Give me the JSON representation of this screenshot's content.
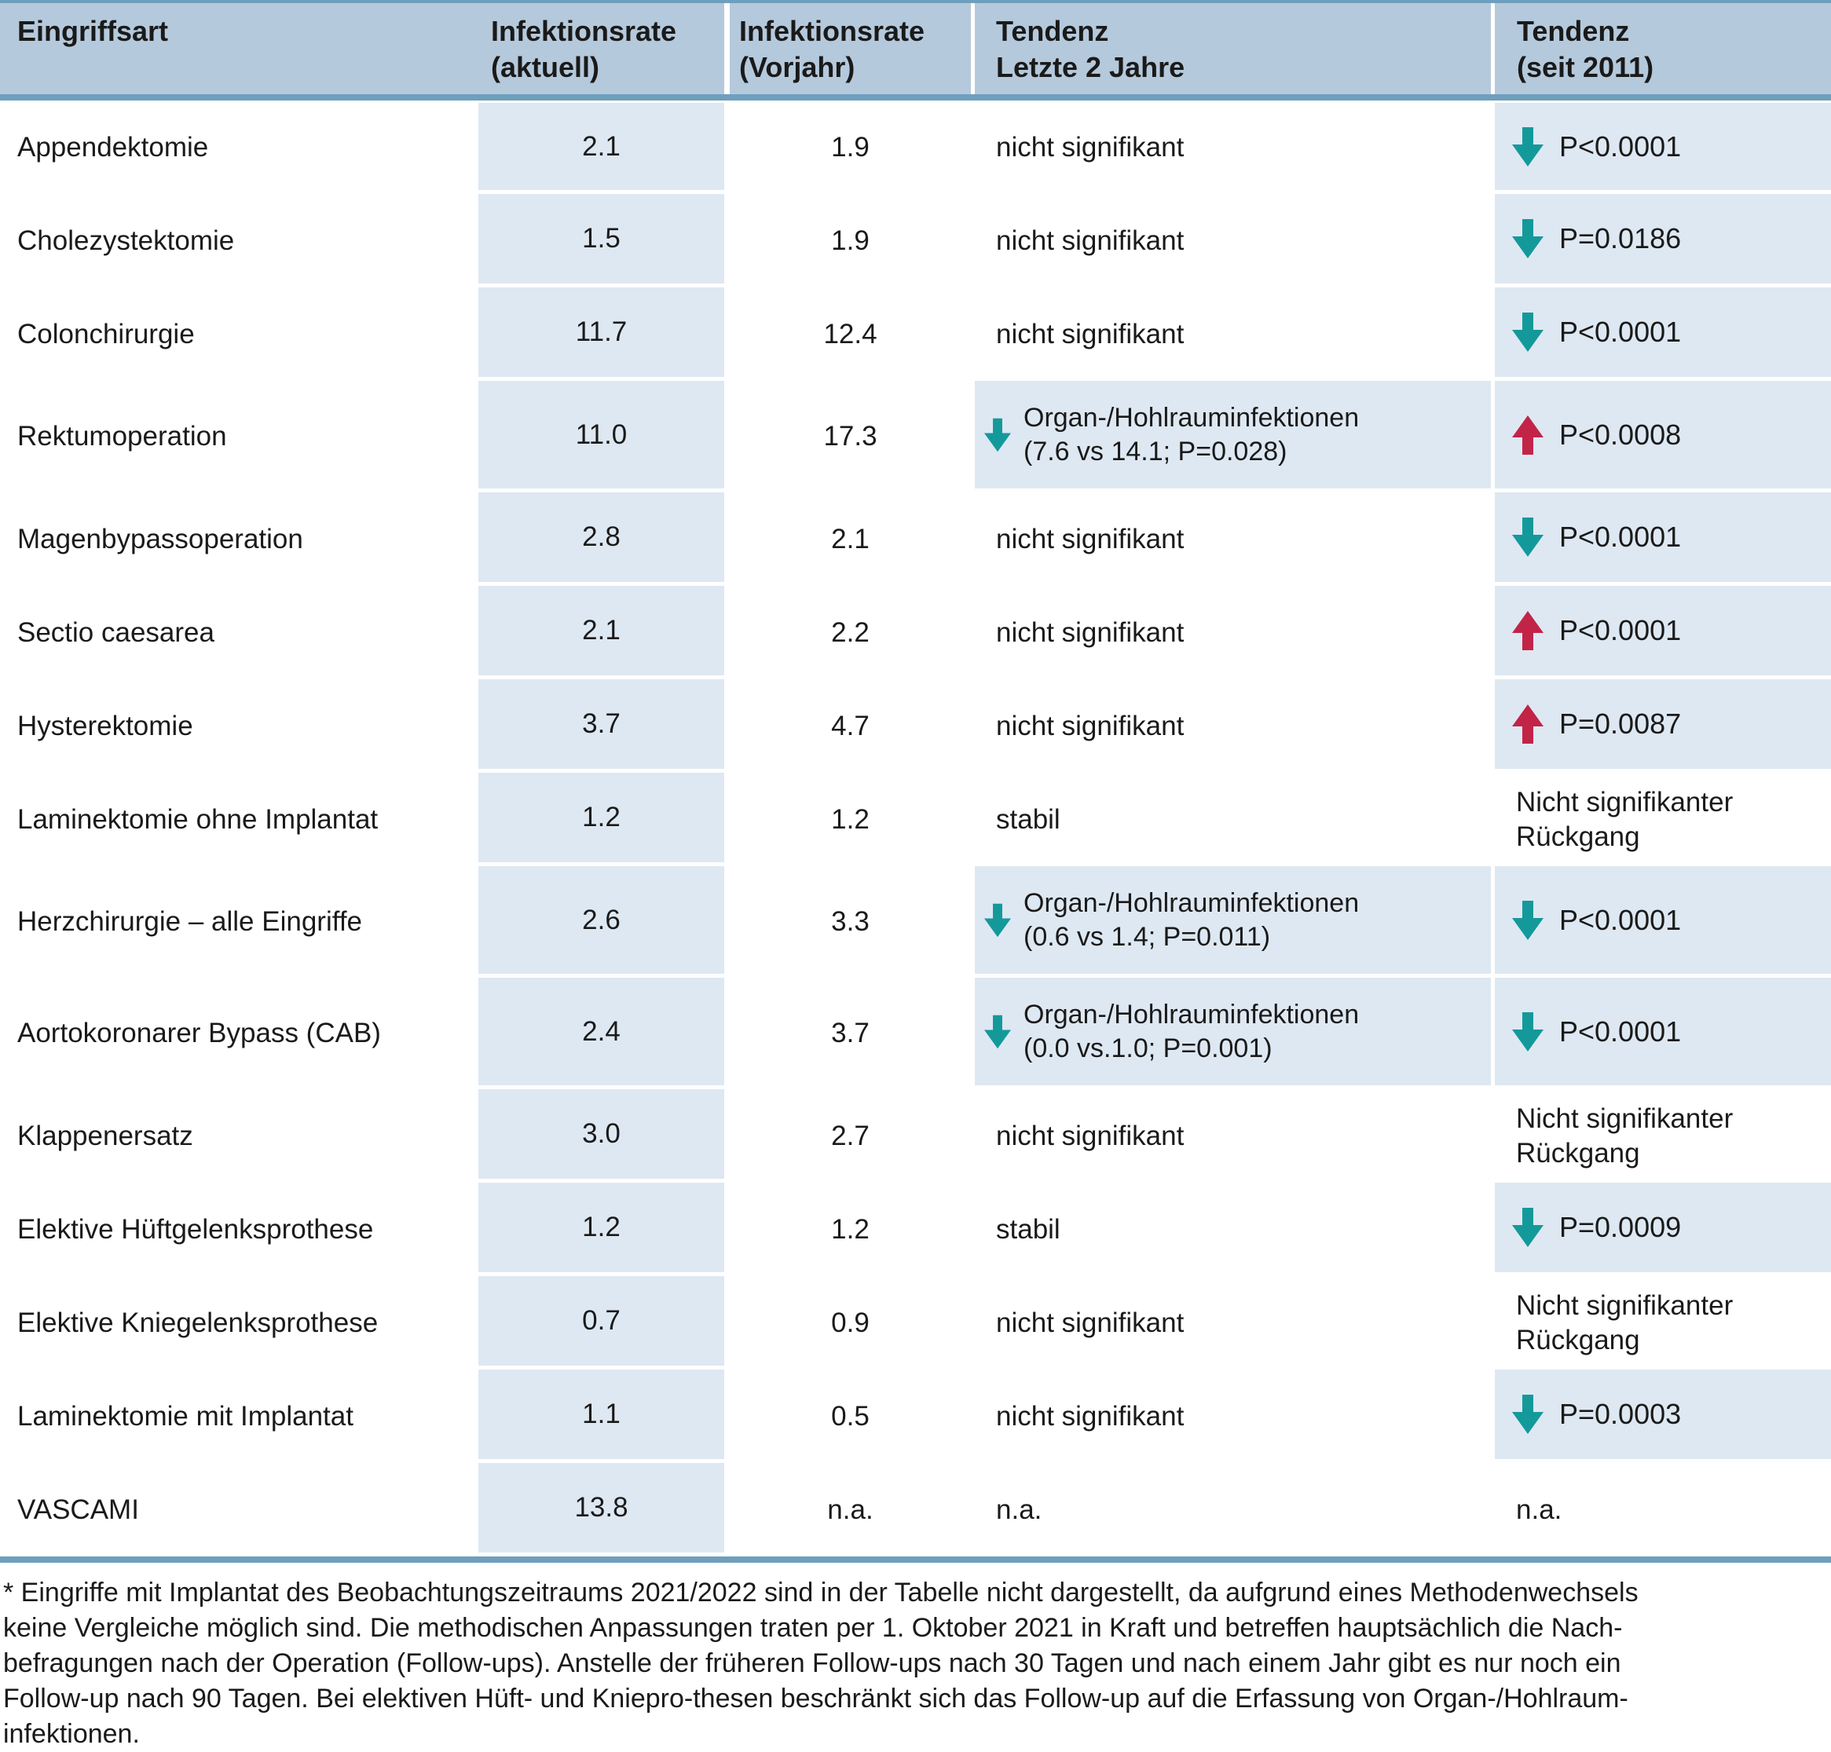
{
  "colors": {
    "header_bg": "#b5c9dc",
    "cell_bg": "#dee8f2",
    "rule": "#6f9fbe",
    "teal": "#14999b",
    "red": "#c22448",
    "text": "#1a1a1a"
  },
  "header": {
    "col1": [
      "Eingriffsart"
    ],
    "col2": [
      "Infektionsrate",
      "(aktuell)"
    ],
    "col3": [
      "Infektionsrate",
      "(Vorjahr)"
    ],
    "col4": [
      "Tendenz",
      "Letzte 2 Jahre"
    ],
    "col5": [
      "Tendenz",
      "(seit 2011)"
    ]
  },
  "rows": [
    {
      "name": "Appendektomie",
      "current": "2.1",
      "previous": "1.9",
      "trend2y": {
        "text": "nicht signifikant"
      },
      "trend2011": {
        "arrow": "down",
        "color": "teal",
        "text": "P<0.0001"
      }
    },
    {
      "name": "Cholezystektomie",
      "current": "1.5",
      "previous": "1.9",
      "trend2y": {
        "text": "nicht signifikant"
      },
      "trend2011": {
        "arrow": "down",
        "color": "teal",
        "text": "P=0.0186"
      }
    },
    {
      "name": "Colonchirurgie",
      "current": "11.7",
      "previous": "12.4",
      "trend2y": {
        "text": "nicht signifikant"
      },
      "trend2011": {
        "arrow": "down",
        "color": "teal",
        "text": "P<0.0001"
      }
    },
    {
      "name": "Rektumoperation",
      "current": "11.0",
      "previous": "17.3",
      "trend2y": {
        "arrow": "down",
        "color": "teal",
        "line1": "Organ-/Hohlrauminfektionen",
        "line2": "(7.6 vs 14.1; P=0.028)"
      },
      "trend2011": {
        "arrow": "up",
        "color": "red",
        "text": "P<0.0008"
      }
    },
    {
      "name": "Magenbypassoperation",
      "current": "2.8",
      "previous": "2.1",
      "trend2y": {
        "text": "nicht signifikant"
      },
      "trend2011": {
        "arrow": "down",
        "color": "teal",
        "text": "P<0.0001"
      }
    },
    {
      "name": "Sectio caesarea",
      "current": "2.1",
      "previous": "2.2",
      "trend2y": {
        "text": "nicht signifikant"
      },
      "trend2011": {
        "arrow": "up",
        "color": "red",
        "text": "P<0.0001"
      }
    },
    {
      "name": "Hysterektomie",
      "current": "3.7",
      "previous": "4.7",
      "trend2y": {
        "text": "nicht signifikant"
      },
      "trend2011": {
        "arrow": "up",
        "color": "red",
        "text": "P=0.0087"
      }
    },
    {
      "name": "Laminektomie ohne Implantat",
      "current": "1.2",
      "previous": "1.2",
      "trend2y": {
        "text": "stabil"
      },
      "trend2011": {
        "text": "Nicht signifikanter Rückgang"
      }
    },
    {
      "name": "Herzchirurgie – alle Eingriffe",
      "current": "2.6",
      "previous": "3.3",
      "trend2y": {
        "arrow": "down",
        "color": "teal",
        "line1": "Organ-/Hohlrauminfektionen",
        "line2": "(0.6 vs 1.4; P=0.011)"
      },
      "trend2011": {
        "arrow": "down",
        "color": "teal",
        "text": "P<0.0001"
      }
    },
    {
      "name": "Aortokoronarer Bypass (CAB)",
      "current": "2.4",
      "previous": "3.7",
      "trend2y": {
        "arrow": "down",
        "color": "teal",
        "line1": "Organ-/Hohlrauminfektionen",
        "line2": "(0.0 vs.1.0; P=0.001)"
      },
      "trend2011": {
        "arrow": "down",
        "color": "teal",
        "text": "P<0.0001"
      }
    },
    {
      "name": "Klappenersatz",
      "current": "3.0",
      "previous": "2.7",
      "trend2y": {
        "text": "nicht signifikant"
      },
      "trend2011": {
        "text": "Nicht signifikanter Rückgang"
      }
    },
    {
      "name": "Elektive Hüftgelenksprothese",
      "current": "1.2",
      "previous": "1.2",
      "trend2y": {
        "text": "stabil"
      },
      "trend2011": {
        "arrow": "down",
        "color": "teal",
        "text": "P=0.0009"
      }
    },
    {
      "name": "Elektive Kniegelenksprothese",
      "current": "0.7",
      "previous": "0.9",
      "trend2y": {
        "text": "nicht signifikant"
      },
      "trend2011": {
        "text": "Nicht signifikanter Rückgang"
      }
    },
    {
      "name": "Laminektomie mit Implantat",
      "current": "1.1",
      "previous": "0.5",
      "trend2y": {
        "text": "nicht signifikant"
      },
      "trend2011": {
        "arrow": "down",
        "color": "teal",
        "text": "P=0.0003"
      }
    },
    {
      "name": "VASCAMI",
      "current": "13.8",
      "previous": "n.a.",
      "trend2y": {
        "text": "n.a."
      },
      "trend2011": {
        "text": "n.a."
      }
    }
  ],
  "footnote": {
    "lines": [
      "* Eingriffe mit Implantat des Beobachtungszeitraums 2021/2022 sind in der Tabelle nicht dargestellt, da aufgrund eines Methodenwechsels",
      "keine Vergleiche möglich sind. Die methodischen Anpassungen traten per 1. Oktober 2021 in Kraft und betreffen hauptsächlich die Nach-",
      "befragungen nach der Operation (Follow-ups). Anstelle der früheren Follow-ups nach 30 Tagen und nach einem Jahr gibt es nur noch ein",
      "Follow-up nach 90 Tagen. Bei elektiven Hüft- und Kniepro-thesen beschränkt sich das Follow-up auf die Erfassung von Organ-/Hohlraum-",
      "infektionen."
    ]
  }
}
